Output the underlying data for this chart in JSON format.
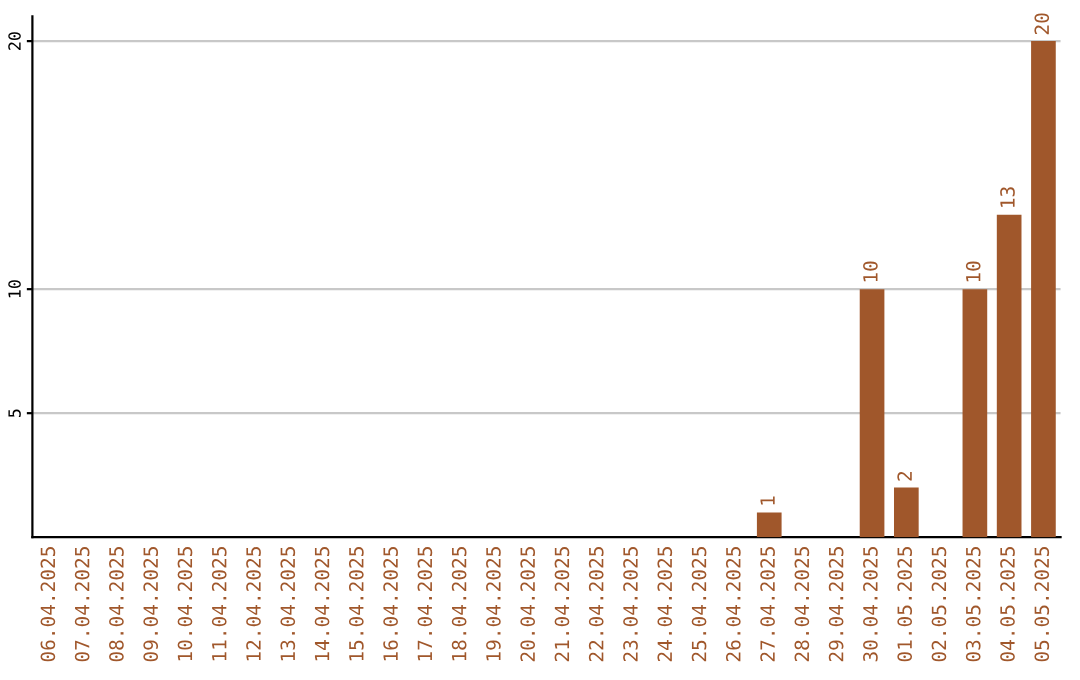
{
  "chart_data": {
    "type": "bar",
    "categories": [
      "06.04.2025",
      "07.04.2025",
      "08.04.2025",
      "09.04.2025",
      "10.04.2025",
      "11.04.2025",
      "12.04.2025",
      "13.04.2025",
      "14.04.2025",
      "15.04.2025",
      "16.04.2025",
      "17.04.2025",
      "18.04.2025",
      "19.04.2025",
      "20.04.2025",
      "21.04.2025",
      "22.04.2025",
      "23.04.2025",
      "24.04.2025",
      "25.04.2025",
      "26.04.2025",
      "27.04.2025",
      "28.04.2025",
      "29.04.2025",
      "30.04.2025",
      "01.05.2025",
      "02.05.2025",
      "03.05.2025",
      "04.05.2025",
      "05.05.2025"
    ],
    "values": [
      null,
      null,
      null,
      null,
      null,
      null,
      null,
      null,
      null,
      null,
      null,
      null,
      null,
      null,
      null,
      null,
      null,
      null,
      null,
      null,
      null,
      1,
      null,
      null,
      10,
      2,
      null,
      10,
      13,
      20
    ],
    "color": "#a0572b",
    "ylim": [
      0,
      21
    ],
    "yticks": [
      5,
      10,
      20
    ],
    "grid": "y",
    "data_labels": true
  }
}
